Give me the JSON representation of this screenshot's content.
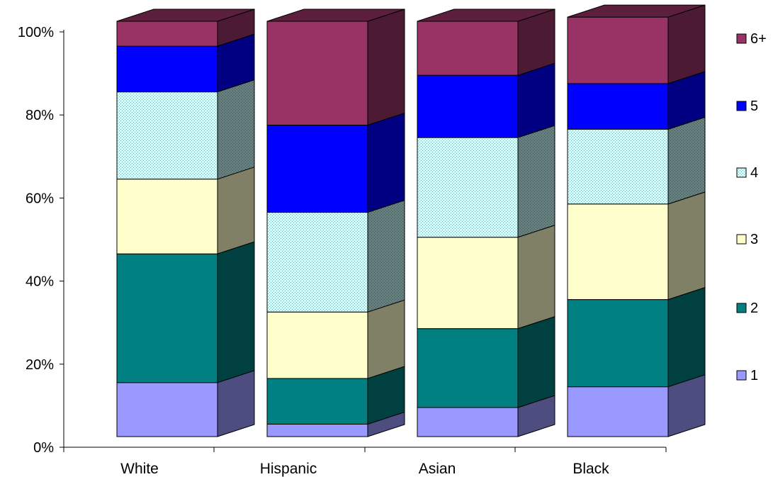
{
  "chart_data": {
    "type": "bar",
    "stacked": true,
    "normalized_percent": true,
    "three_d": true,
    "categories": [
      "White",
      "Hispanic",
      "Asian",
      "Black"
    ],
    "y_ticks": [
      "0%",
      "20%",
      "40%",
      "60%",
      "80%",
      "100%"
    ],
    "ylim": [
      0,
      100
    ],
    "grid": false,
    "legend_position": "right",
    "series": [
      {
        "name": "1",
        "color": "#9999FF",
        "values": [
          13,
          3,
          7,
          12
        ]
      },
      {
        "name": "2",
        "color": "#008080",
        "values": [
          31,
          11,
          19,
          21
        ]
      },
      {
        "name": "3",
        "color": "#FFFFCC",
        "values": [
          18,
          16,
          22,
          23
        ]
      },
      {
        "name": "4",
        "color": "#CCFFFF",
        "values": [
          21,
          24,
          24,
          18
        ]
      },
      {
        "name": "5",
        "color": "#0000FF",
        "values": [
          11,
          21,
          15,
          11
        ]
      },
      {
        "name": "6+",
        "color": "#993366",
        "values": [
          6,
          25,
          13,
          16
        ]
      }
    ]
  }
}
